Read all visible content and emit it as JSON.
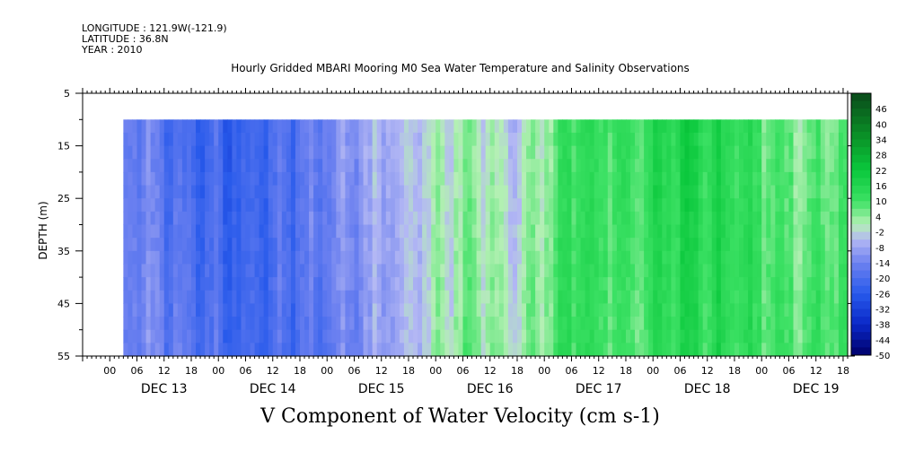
{
  "header": {
    "longitude": "LONGITUDE : 121.9W(-121.9)",
    "latitude": "LATITUDE : 36.8N",
    "year": "YEAR : 2010"
  },
  "chart_data": {
    "type": "heatmap",
    "title": "Hourly Gridded MBARI Mooring M0 Sea Water Temperature and Salinity Observations",
    "variable_label": "V Component of Water Velocity (cm s-1)",
    "ylabel": "DEPTH (m)",
    "y_axis": {
      "range": [
        5,
        55
      ],
      "direction": "down",
      "ticks": [
        5,
        15,
        25,
        35,
        45,
        55
      ]
    },
    "x_axis": {
      "day_labels": [
        "DEC 13",
        "DEC 14",
        "DEC 15",
        "DEC 16",
        "DEC 17",
        "DEC 18",
        "DEC 19"
      ],
      "hour_labels": [
        "00",
        "06",
        "12",
        "18",
        "00",
        "06",
        "12",
        "18",
        "00",
        "06",
        "12",
        "18",
        "00",
        "06",
        "12",
        "18",
        "00",
        "06",
        "12",
        "18",
        "00",
        "06",
        "12",
        "18",
        "00",
        "06",
        "12",
        "18"
      ],
      "start_hour_on_dec13_day": -6,
      "end_hour": 163
    },
    "data_extent": {
      "depth_top": 10,
      "depth_bottom": 55,
      "first_hour": 3,
      "last_hour": 163
    },
    "colorbar": {
      "labels": [
        "46",
        "40",
        "34",
        "28",
        "22",
        "16",
        "10",
        "4",
        "-2",
        "-8",
        "-14",
        "-20",
        "-26",
        "-32",
        "-38",
        "-44",
        "-50"
      ],
      "min": -50,
      "max": 52,
      "step": 3
    },
    "v_velocity_hourly_profile": [
      {
        "hours": [
          3,
          30
        ],
        "surface": -8,
        "deep": -14,
        "note_text": ""
      }
    ],
    "v_velocity_time_series_cm_s": [
      {
        "hour": 6,
        "value": -14
      },
      {
        "hour": 18,
        "value": -20
      },
      {
        "hour": 30,
        "value": -23
      },
      {
        "hour": 42,
        "value": -17
      },
      {
        "hour": 54,
        "value": -11
      },
      {
        "hour": 66,
        "value": -5
      },
      {
        "hour": 78,
        "value": 4
      },
      {
        "hour": 90,
        "value": -2
      },
      {
        "hour": 102,
        "value": 13
      },
      {
        "hour": 114,
        "value": 10
      },
      {
        "hour": 126,
        "value": 16
      },
      {
        "hour": 138,
        "value": 13
      },
      {
        "hour": 150,
        "value": 7
      },
      {
        "hour": 162,
        "value": 10
      }
    ],
    "colors": {
      "frame": "#000000",
      "negative_max": "#00006a",
      "neutral_low": "#b4b8f4",
      "neutral_high": "#b4f0b4",
      "positive_max": "#0a4a1a"
    }
  }
}
